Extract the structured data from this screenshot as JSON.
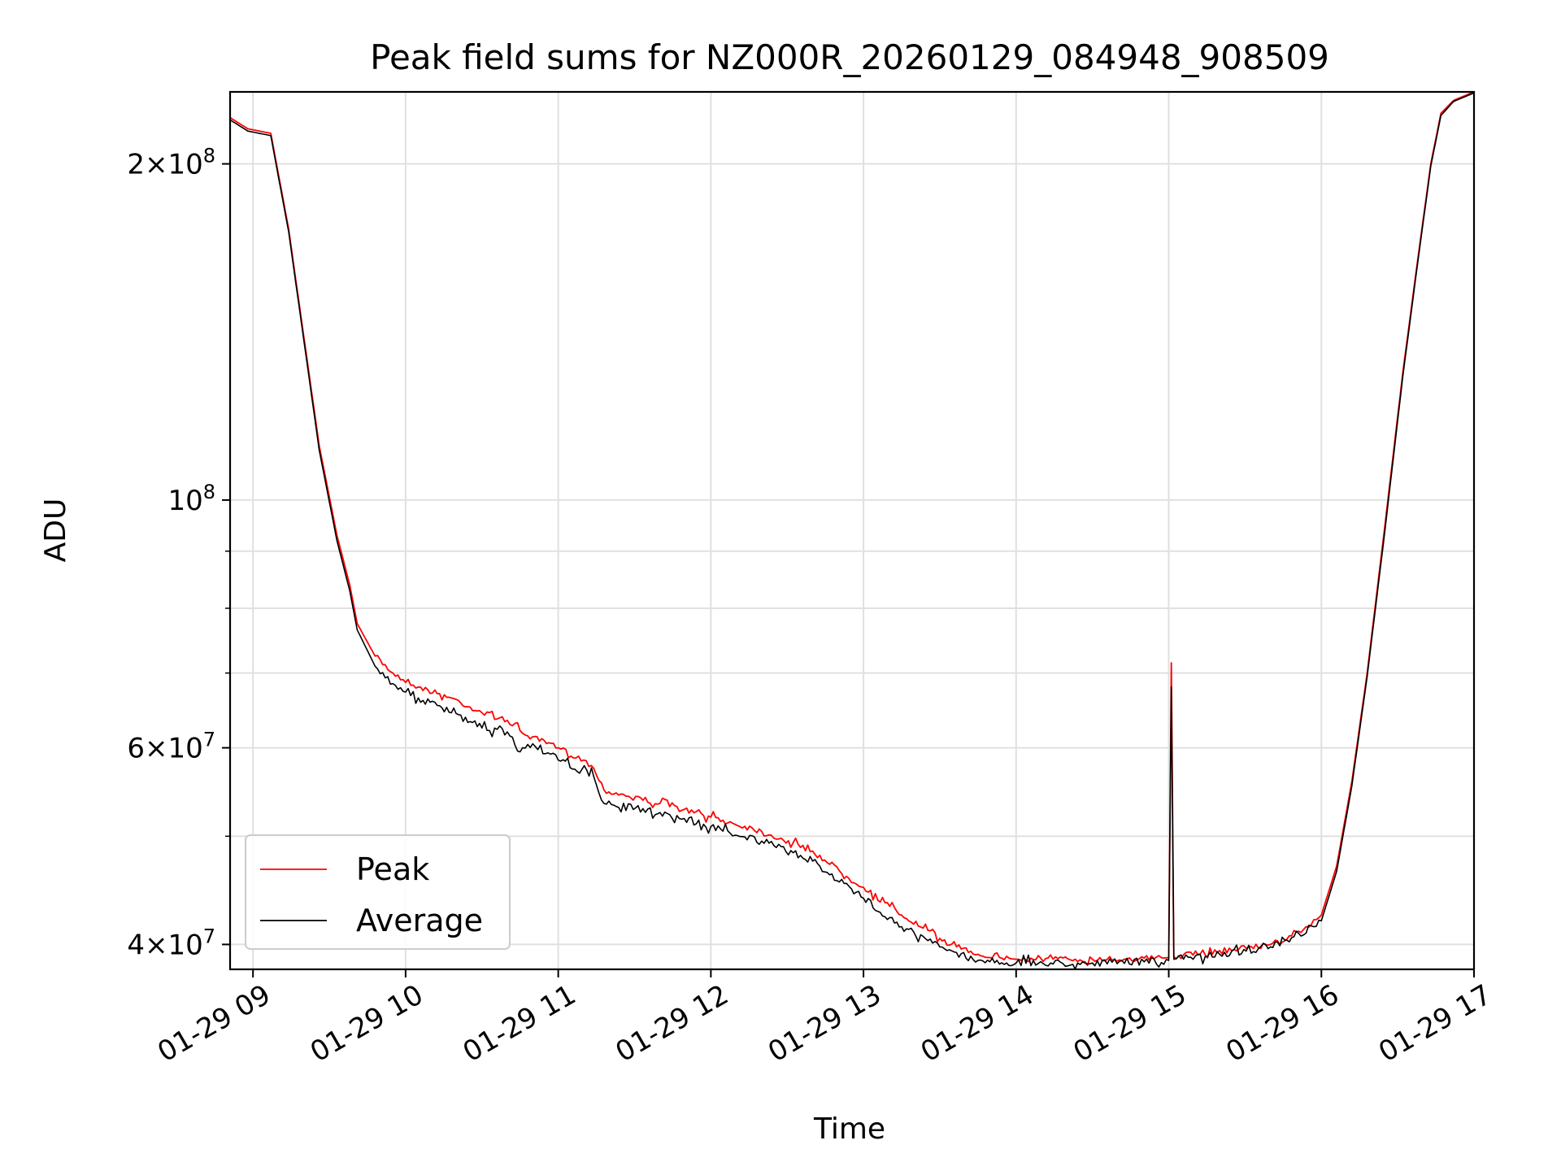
{
  "chart_data": {
    "type": "line",
    "title": "Peak field sums for NZ000R_20260129_084948_908509",
    "xlabel": "Time",
    "ylabel": "ADU",
    "y_scale": "log",
    "ylim": [
      38000000,
      232000000
    ],
    "xlim": [
      "2026-01-29 08:51",
      "2026-01-29 17:00"
    ],
    "grid": true,
    "legend_position": "lower-left",
    "x_ticks": [
      {
        "t": "2026-01-29 09:00",
        "label": "01-29 09"
      },
      {
        "t": "2026-01-29 10:00",
        "label": "01-29 10"
      },
      {
        "t": "2026-01-29 11:00",
        "label": "01-29 11"
      },
      {
        "t": "2026-01-29 12:00",
        "label": "01-29 12"
      },
      {
        "t": "2026-01-29 13:00",
        "label": "01-29 13"
      },
      {
        "t": "2026-01-29 14:00",
        "label": "01-29 14"
      },
      {
        "t": "2026-01-29 15:00",
        "label": "01-29 15"
      },
      {
        "t": "2026-01-29 16:00",
        "label": "01-29 16"
      },
      {
        "t": "2026-01-29 17:00",
        "label": "01-29 17"
      }
    ],
    "y_ticks": [
      {
        "value": 40000000,
        "mantissa": "4",
        "exponent": "7"
      },
      {
        "value": 60000000,
        "mantissa": "6",
        "exponent": "7"
      },
      {
        "value": 100000000,
        "mantissa": "",
        "exponent": "8"
      },
      {
        "value": 200000000,
        "mantissa": "2",
        "exponent": "8"
      }
    ],
    "y_minor_ticks": [
      50000000,
      70000000,
      80000000,
      90000000
    ],
    "series": [
      {
        "name": "Peak",
        "color": "#ff0000",
        "points": [
          [
            "2026-01-29 08:51",
            220000000
          ],
          [
            "2026-01-29 08:58",
            215000000
          ],
          [
            "2026-01-29 09:07",
            213000000
          ],
          [
            "2026-01-29 09:14",
            175000000
          ],
          [
            "2026-01-29 09:20",
            140000000
          ],
          [
            "2026-01-29 09:26",
            112000000
          ],
          [
            "2026-01-29 09:33",
            93000000
          ],
          [
            "2026-01-29 09:38",
            84000000
          ],
          [
            "2026-01-29 09:41",
            77500000
          ],
          [
            "2026-01-29 09:48",
            72500000
          ],
          [
            "2026-01-29 09:55",
            70000000
          ],
          [
            "2026-01-29 10:05",
            68000000
          ],
          [
            "2026-01-29 10:18",
            66500000
          ],
          [
            "2026-01-29 10:30",
            64500000
          ],
          [
            "2026-01-29 10:40",
            63500000
          ],
          [
            "2026-01-29 10:48",
            61500000
          ],
          [
            "2026-01-29 11:00",
            60000000
          ],
          [
            "2026-01-29 11:10",
            58500000
          ],
          [
            "2026-01-29 11:14",
            57500000
          ],
          [
            "2026-01-29 11:18",
            55000000
          ],
          [
            "2026-01-29 11:40",
            53500000
          ],
          [
            "2026-01-29 12:00",
            52000000
          ],
          [
            "2026-01-29 12:20",
            50500000
          ],
          [
            "2026-01-29 12:40",
            48500000
          ],
          [
            "2026-01-29 13:00",
            45000000
          ],
          [
            "2026-01-29 13:15",
            42500000
          ],
          [
            "2026-01-29 13:30",
            40500000
          ],
          [
            "2026-01-29 13:45",
            39200000
          ],
          [
            "2026-01-29 14:00",
            38800000
          ],
          [
            "2026-01-29 14:30",
            38800000
          ],
          [
            "2026-01-29 15:00",
            38900000
          ],
          [
            "2026-01-29 15:01",
            71500000
          ],
          [
            "2026-01-29 15:02",
            39000000
          ],
          [
            "2026-01-29 15:20",
            39500000
          ],
          [
            "2026-01-29 15:40",
            40000000
          ],
          [
            "2026-01-29 15:52",
            41000000
          ],
          [
            "2026-01-29 16:00",
            42500000
          ],
          [
            "2026-01-29 16:06",
            47000000
          ],
          [
            "2026-01-29 16:12",
            56000000
          ],
          [
            "2026-01-29 16:18",
            70000000
          ],
          [
            "2026-01-29 16:25",
            95000000
          ],
          [
            "2026-01-29 16:32",
            130000000
          ],
          [
            "2026-01-29 16:38",
            165000000
          ],
          [
            "2026-01-29 16:43",
            200000000
          ],
          [
            "2026-01-29 16:47",
            222000000
          ],
          [
            "2026-01-29 16:52",
            228000000
          ],
          [
            "2026-01-29 17:00",
            232000000
          ]
        ]
      },
      {
        "name": "Average",
        "color": "#000000",
        "points": [
          [
            "2026-01-29 08:51",
            219000000
          ],
          [
            "2026-01-29 08:58",
            214000000
          ],
          [
            "2026-01-29 09:07",
            212000000
          ],
          [
            "2026-01-29 09:14",
            174000000
          ],
          [
            "2026-01-29 09:20",
            139000000
          ],
          [
            "2026-01-29 09:26",
            111000000
          ],
          [
            "2026-01-29 09:33",
            92000000
          ],
          [
            "2026-01-29 09:38",
            83000000
          ],
          [
            "2026-01-29 09:41",
            76500000
          ],
          [
            "2026-01-29 09:48",
            71000000
          ],
          [
            "2026-01-29 09:55",
            68500000
          ],
          [
            "2026-01-29 10:05",
            66500000
          ],
          [
            "2026-01-29 10:18",
            64500000
          ],
          [
            "2026-01-29 10:30",
            62500000
          ],
          [
            "2026-01-29 10:40",
            62000000
          ],
          [
            "2026-01-29 10:45",
            59500000
          ],
          [
            "2026-01-29 10:50",
            60500000
          ],
          [
            "2026-01-29 11:00",
            58500000
          ],
          [
            "2026-01-29 11:14",
            56500000
          ],
          [
            "2026-01-29 11:18",
            53500000
          ],
          [
            "2026-01-29 11:40",
            52500000
          ],
          [
            "2026-01-29 12:00",
            51000000
          ],
          [
            "2026-01-29 12:20",
            49500000
          ],
          [
            "2026-01-29 12:40",
            47500000
          ],
          [
            "2026-01-29 13:00",
            44000000
          ],
          [
            "2026-01-29 13:15",
            41500000
          ],
          [
            "2026-01-29 13:30",
            39800000
          ],
          [
            "2026-01-29 13:45",
            38700000
          ],
          [
            "2026-01-29 14:00",
            38500000
          ],
          [
            "2026-01-29 14:30",
            38500000
          ],
          [
            "2026-01-29 15:00",
            38700000
          ],
          [
            "2026-01-29 15:01",
            68000000
          ],
          [
            "2026-01-29 15:02",
            38800000
          ],
          [
            "2026-01-29 15:20",
            39200000
          ],
          [
            "2026-01-29 15:40",
            39800000
          ],
          [
            "2026-01-29 15:52",
            40700000
          ],
          [
            "2026-01-29 16:00",
            42000000
          ],
          [
            "2026-01-29 16:06",
            46500000
          ],
          [
            "2026-01-29 16:12",
            55500000
          ],
          [
            "2026-01-29 16:18",
            69500000
          ],
          [
            "2026-01-29 16:25",
            94000000
          ],
          [
            "2026-01-29 16:32",
            129000000
          ],
          [
            "2026-01-29 16:38",
            164000000
          ],
          [
            "2026-01-29 16:43",
            199000000
          ],
          [
            "2026-01-29 16:47",
            221000000
          ],
          [
            "2026-01-29 16:52",
            227500000
          ],
          [
            "2026-01-29 17:00",
            231500000
          ]
        ]
      }
    ]
  }
}
